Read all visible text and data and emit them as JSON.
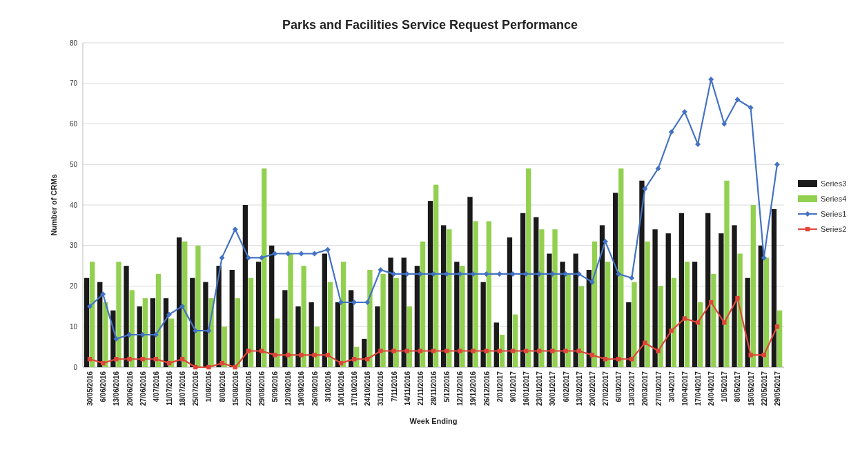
{
  "chart_data": {
    "type": "bar",
    "title": "Parks and Facilities Service Request Performance",
    "xlabel": "Week Ending",
    "ylabel": "Number of CRMs",
    "categories": [
      "30/05/2016",
      "6/06/2016",
      "13/06/2016",
      "20/06/2016",
      "27/06/2016",
      "4/07/2016",
      "11/07/2016",
      "18/07/2016",
      "25/07/2016",
      "1/08/2016",
      "8/08/2016",
      "15/08/2016",
      "22/08/2016",
      "29/08/2016",
      "5/09/2016",
      "12/09/2016",
      "19/09/2016",
      "26/09/2016",
      "3/10/2016",
      "10/10/2016",
      "17/10/2016",
      "24/10/2016",
      "31/10/2016",
      "7/11/2016",
      "14/11/2016",
      "21/11/2016",
      "28/11/2016",
      "5/12/2016",
      "12/12/2016",
      "19/12/2016",
      "26/12/2016",
      "2/01/2017",
      "9/01/2017",
      "16/01/2017",
      "23/01/2017",
      "30/01/2017",
      "6/02/2017",
      "13/02/2017",
      "20/02/2017",
      "27/02/2017",
      "6/03/2017",
      "13/03/2017",
      "20/03/2017",
      "27/03/2017",
      "3/04/2017",
      "10/04/2017",
      "17/04/2017",
      "24/04/2017",
      "1/05/2017",
      "8/05/2017",
      "15/05/2017",
      "22/05/2017",
      "29/05/2017"
    ],
    "series": [
      {
        "name": "Series3",
        "color": "#1a1a1a",
        "values": [
          22,
          21,
          14,
          25,
          15,
          17,
          17,
          32,
          22,
          21,
          25,
          24,
          40,
          26,
          30,
          19,
          15,
          16,
          28,
          16,
          19,
          7,
          15,
          27,
          27,
          25,
          41,
          35,
          26,
          42,
          21,
          11,
          32,
          38,
          37,
          28,
          26,
          28,
          24,
          35,
          43,
          16,
          46,
          34,
          33,
          38,
          26,
          38,
          33,
          35,
          22,
          30,
          39
        ]
      },
      {
        "name": "Series4",
        "color": "#92d050",
        "values": [
          26,
          16,
          26,
          19,
          17,
          23,
          12,
          31,
          30,
          17,
          10,
          17,
          22,
          49,
          12,
          28,
          25,
          10,
          21,
          26,
          5,
          24,
          23,
          22,
          15,
          31,
          45,
          34,
          25,
          36,
          36,
          8,
          13,
          49,
          34,
          34,
          23,
          20,
          31,
          26,
          49,
          21,
          31,
          20,
          22,
          26,
          16,
          23,
          46,
          28,
          40,
          27,
          14
        ]
      },
      {
        "name": "Series1",
        "type": "line",
        "color": "#4472c4",
        "marker": "diamond",
        "values": [
          15,
          18,
          7,
          8,
          8,
          8,
          13,
          15,
          9,
          9,
          27,
          34,
          27,
          27,
          28,
          28,
          28,
          28,
          29,
          16,
          16,
          16,
          24,
          23,
          23,
          23,
          23,
          23,
          23,
          23,
          23,
          23,
          23,
          23,
          23,
          23,
          23,
          23,
          21,
          31,
          23,
          22,
          44,
          49,
          58,
          63,
          55,
          71,
          60,
          66,
          64,
          27,
          50
        ]
      },
      {
        "name": "Series2",
        "type": "line",
        "color": "#e0453a",
        "marker": "square",
        "values": [
          2,
          1,
          2,
          2,
          2,
          2,
          1,
          2,
          0,
          0,
          1,
          0,
          4,
          4,
          3,
          3,
          3,
          3,
          3,
          1,
          2,
          2,
          4,
          4,
          4,
          4,
          4,
          4,
          4,
          4,
          4,
          4,
          4,
          4,
          4,
          4,
          4,
          4,
          3,
          2,
          2,
          2,
          6,
          4,
          9,
          12,
          11,
          16,
          11,
          17,
          3,
          3,
          10
        ]
      }
    ],
    "ylim": [
      0,
      80
    ],
    "yticks": [
      0,
      10,
      20,
      30,
      40,
      50,
      60,
      70,
      80
    ],
    "grid": "y",
    "legend": "right"
  }
}
